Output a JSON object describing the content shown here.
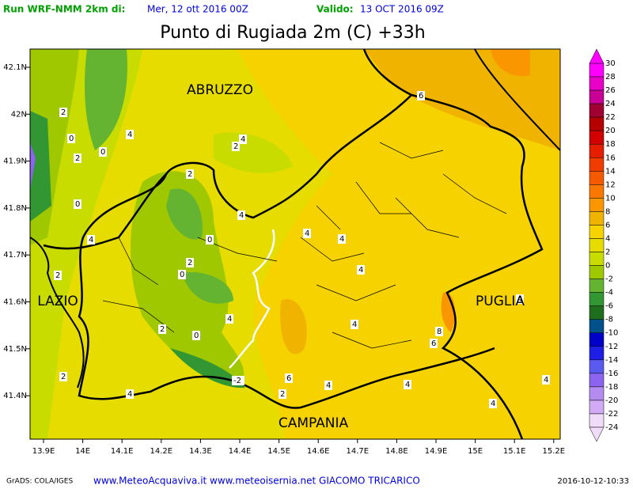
{
  "header": {
    "run_label": "Run WRF-NMM 2km di:",
    "run_date": "Mer, 12 ott 2016 00Z",
    "valid_label": "Valido:",
    "valid_date": "13 OCT 2016 09Z",
    "title": "Punto di Rugiada 2m (C) +33h"
  },
  "map": {
    "regions": [
      "ABRUZZO",
      "LAZIO",
      "PUGLIA",
      "CAMPANIA"
    ],
    "lon_labels": [
      "13.9E",
      "14E",
      "14.1E",
      "14.2E",
      "14.3E",
      "14.4E",
      "14.5E",
      "14.6E",
      "14.7E",
      "14.8E",
      "14.9E",
      "15E",
      "15.1E",
      "15.2E"
    ],
    "lat_labels": [
      "42.1N",
      "42N",
      "41.9N",
      "41.8N",
      "41.7N",
      "41.6N",
      "41.5N",
      "41.4N"
    ],
    "contour_labels": [
      "2",
      "0",
      "0",
      "2",
      "4",
      "2",
      "4",
      "2",
      "0",
      "4",
      "4",
      "0",
      "2",
      "0",
      "2",
      "4",
      "4",
      "4",
      "4",
      "2",
      "0",
      "4",
      "8",
      "6",
      "6",
      "-2",
      "2",
      "4",
      "4",
      "4",
      "4",
      "4",
      "2",
      "6",
      "4"
    ]
  },
  "colorbar": {
    "labels": [
      30,
      28,
      26,
      24,
      22,
      20,
      18,
      16,
      14,
      12,
      10,
      8,
      6,
      4,
      2,
      0,
      -2,
      -4,
      -6,
      -8,
      -10,
      -12,
      -14,
      -16,
      -18,
      -20,
      -22,
      -24
    ],
    "colors": [
      "#ff00ff",
      "#e600c8",
      "#c80096",
      "#a00032",
      "#b40000",
      "#d20000",
      "#e61e00",
      "#f03c00",
      "#f55a00",
      "#fa7800",
      "#fa9600",
      "#f0b400",
      "#f5d200",
      "#e6dc00",
      "#c8dc00",
      "#a0c800",
      "#64b432",
      "#329632",
      "#1e6e1e",
      "#00508c",
      "#0000c8",
      "#1e1ee6",
      "#5a5af0",
      "#8c64f0",
      "#b48cf0",
      "#d2aaf5",
      "#f0dcf8"
    ]
  },
  "footer": {
    "left": "GrADS: COLA/IGES",
    "center": "www.MeteoAcquaviva.it www.meteoisernia.net GIACOMO TRICARICO",
    "right": "2016-10-12-10:33"
  }
}
